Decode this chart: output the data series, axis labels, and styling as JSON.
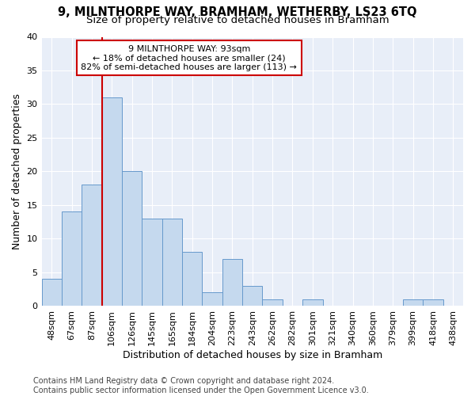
{
  "title": "9, MILNTHORPE WAY, BRAMHAM, WETHERBY, LS23 6TQ",
  "subtitle": "Size of property relative to detached houses in Bramham",
  "xlabel": "Distribution of detached houses by size in Bramham",
  "ylabel": "Number of detached properties",
  "categories": [
    "48sqm",
    "67sqm",
    "87sqm",
    "106sqm",
    "126sqm",
    "145sqm",
    "165sqm",
    "184sqm",
    "204sqm",
    "223sqm",
    "243sqm",
    "262sqm",
    "282sqm",
    "301sqm",
    "321sqm",
    "340sqm",
    "360sqm",
    "379sqm",
    "399sqm",
    "418sqm",
    "438sqm"
  ],
  "values": [
    4,
    14,
    18,
    31,
    20,
    13,
    13,
    8,
    2,
    7,
    3,
    1,
    0,
    1,
    0,
    0,
    0,
    0,
    1,
    1,
    0
  ],
  "bar_color": "#c5d9ee",
  "bar_edge_color": "#6699cc",
  "vline_color": "#cc0000",
  "vline_pos": 2.5,
  "annotation_line1": "9 MILNTHORPE WAY: 93sqm",
  "annotation_line2": "← 18% of detached houses are smaller (24)",
  "annotation_line3": "82% of semi-detached houses are larger (113) →",
  "annotation_box_facecolor": "#ffffff",
  "annotation_box_edgecolor": "#cc0000",
  "ylim": [
    0,
    40
  ],
  "yticks": [
    0,
    5,
    10,
    15,
    20,
    25,
    30,
    35,
    40
  ],
  "figure_facecolor": "#ffffff",
  "axes_facecolor": "#e8eef8",
  "grid_color": "#ffffff",
  "title_fontsize": 10.5,
  "subtitle_fontsize": 9.5,
  "ylabel_fontsize": 9,
  "xlabel_fontsize": 9,
  "tick_fontsize": 8,
  "annotation_fontsize": 8,
  "footnote_fontsize": 7,
  "footnote": "Contains HM Land Registry data © Crown copyright and database right 2024.\nContains public sector information licensed under the Open Government Licence v3.0."
}
